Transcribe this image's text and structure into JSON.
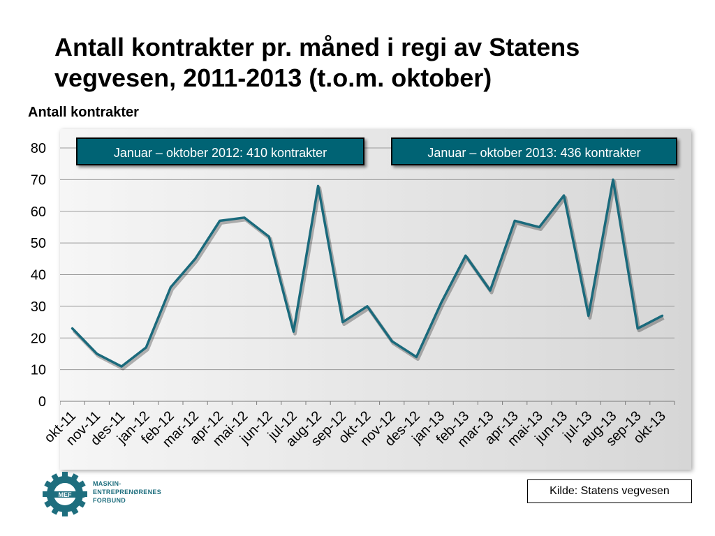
{
  "slide": {
    "title_line1": "Antall kontrakter pr. måned i regi av Statens",
    "title_line2": "vegvesen, 2011-2013 (t.o.m. oktober)"
  },
  "callouts": {
    "left": "Januar – oktober 2012: 410 kontrakter",
    "right": "Januar – oktober 2013: 436 kontrakter"
  },
  "source": "Kilde: Statens vegvesen",
  "logo": {
    "mark": "MEF",
    "line1": "MASKIN-",
    "line2": "ENTREPRENØRENES",
    "line3": "FORBUND"
  },
  "colors": {
    "line": "#1a6a7c",
    "callout_bg": "#006374",
    "logo": "#1e6e7e"
  },
  "chart_data": {
    "type": "line",
    "title": "",
    "ylabel": "Antall kontrakter",
    "xlabel": "",
    "ylim": [
      0,
      80
    ],
    "yticks": [
      0,
      10,
      20,
      30,
      40,
      50,
      60,
      70,
      80
    ],
    "grid": true,
    "categories": [
      "okt-11",
      "nov-11",
      "des-11",
      "jan-12",
      "feb-12",
      "mar-12",
      "apr-12",
      "mai-12",
      "jun-12",
      "jul-12",
      "aug-12",
      "sep-12",
      "okt-12",
      "nov-12",
      "des-12",
      "jan-13",
      "feb-13",
      "mar-13",
      "apr-13",
      "mai-13",
      "jun-13",
      "jul-13",
      "aug-13",
      "sep-13",
      "okt-13"
    ],
    "series": [
      {
        "values": [
          23,
          15,
          11,
          17,
          36,
          45,
          57,
          58,
          52,
          22,
          68,
          25,
          30,
          19,
          14,
          31,
          46,
          35,
          57,
          55,
          65,
          27,
          70,
          23,
          27
        ]
      }
    ]
  }
}
